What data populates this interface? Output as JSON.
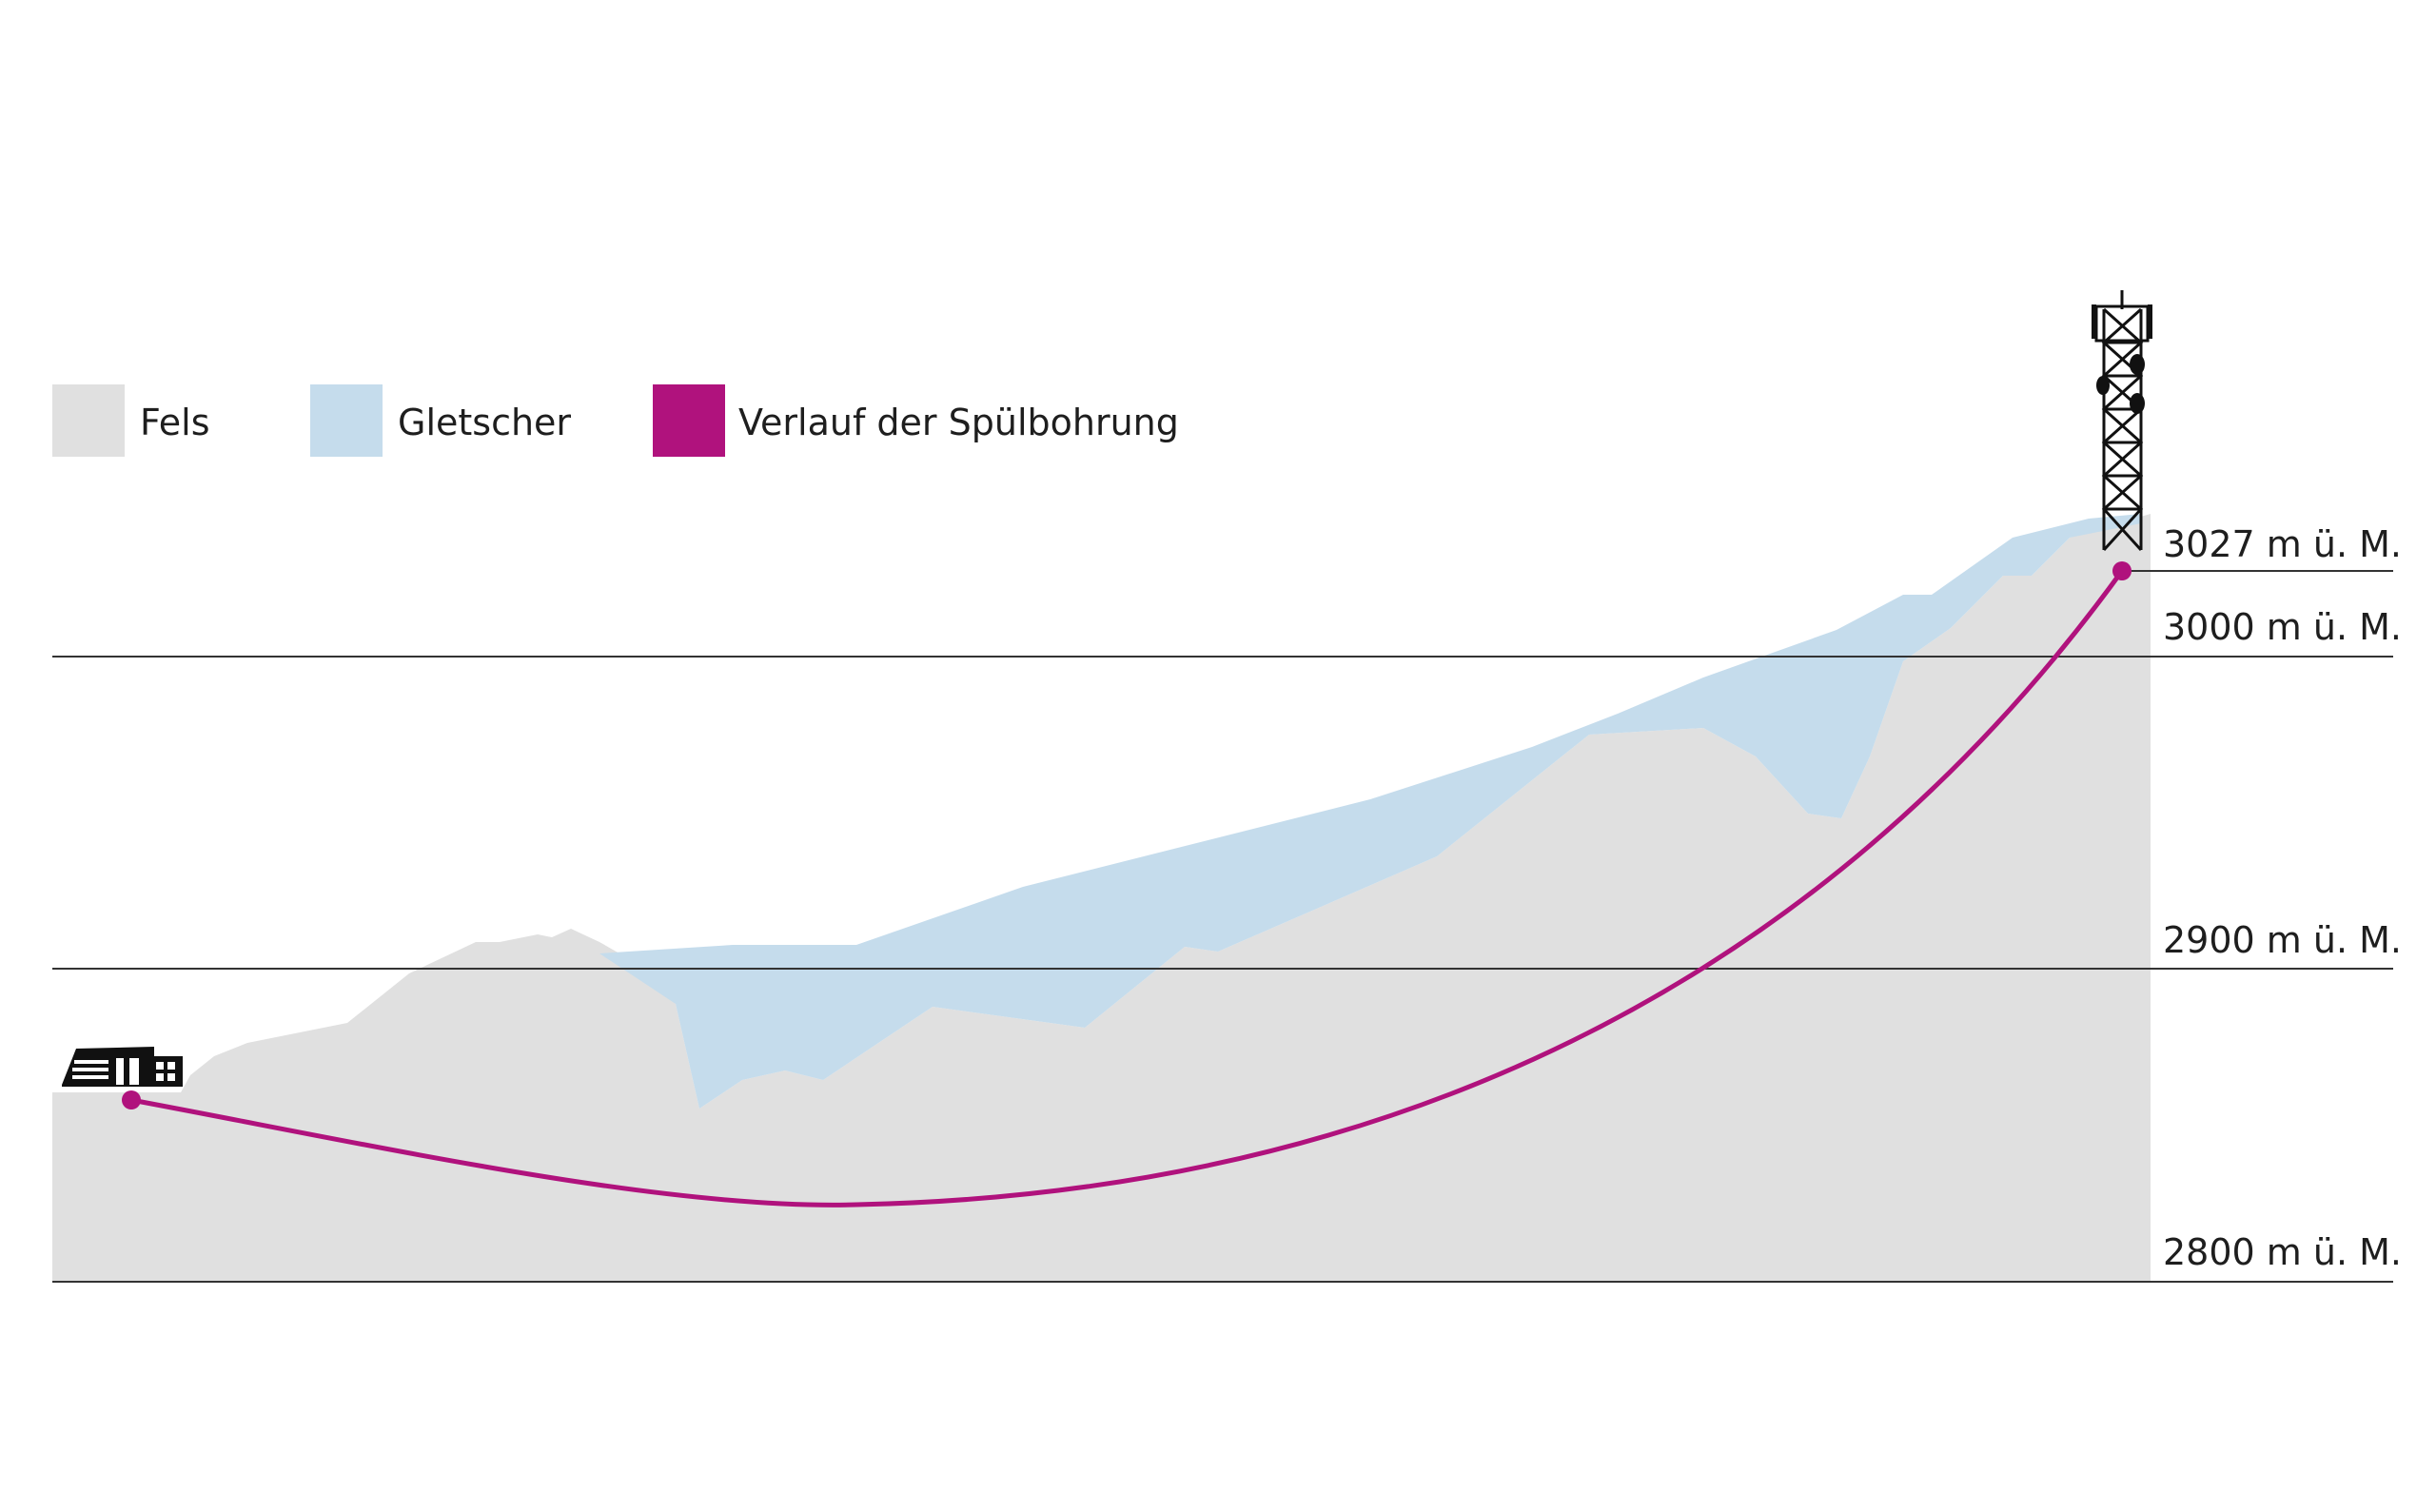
{
  "legend": [
    {
      "key": "rock",
      "label": "Fels",
      "color": "#e0e0e0"
    },
    {
      "key": "glacier",
      "label": "Gletscher",
      "color": "#c5dcec"
    },
    {
      "key": "drill",
      "label": "Verlauf der Spülbohrung",
      "color": "#b0127d"
    }
  ],
  "elevations": [
    {
      "value": 3027,
      "label": "3027 m ü. M."
    },
    {
      "value": 3000,
      "label": "3000 m ü. M."
    },
    {
      "value": 2900,
      "label": "2900 m ü. M."
    },
    {
      "value": 2800,
      "label": "2800 m ü. M."
    }
  ],
  "colors": {
    "rock": "#e0e0e0",
    "glacier": "#c5dcec",
    "drill_path": "#b0127d",
    "gridline": "#333333",
    "icon": "#111111"
  },
  "icons": {
    "start": "building-icon",
    "end": "antenna-tower-icon"
  }
}
